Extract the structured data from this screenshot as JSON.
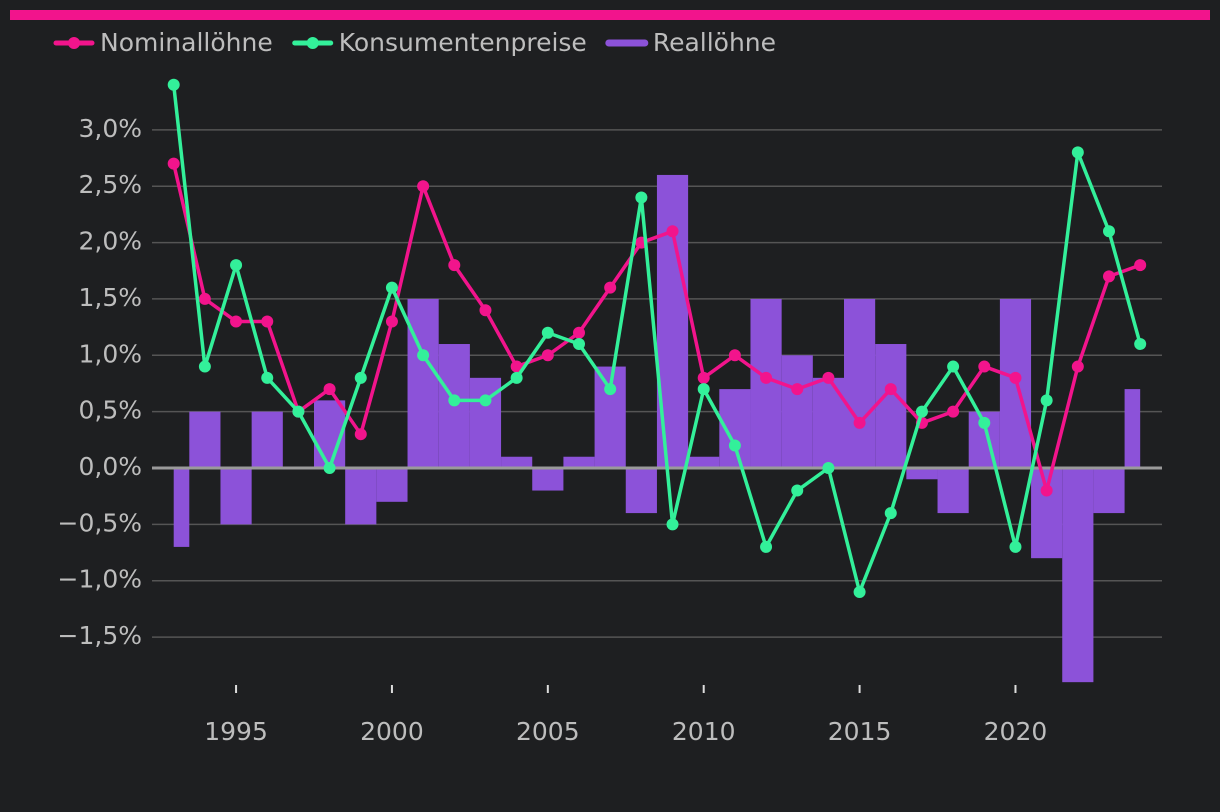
{
  "chart_data": {
    "type": "line_bar",
    "x": [
      1993,
      1994,
      1995,
      1996,
      1997,
      1998,
      1999,
      2000,
      2001,
      2002,
      2003,
      2004,
      2005,
      2006,
      2007,
      2008,
      2009,
      2010,
      2011,
      2012,
      2013,
      2014,
      2015,
      2016,
      2017,
      2018,
      2019,
      2020,
      2021,
      2022,
      2023,
      2024
    ],
    "series": [
      {
        "name": "Nominallöhne",
        "color": "#f2148c",
        "kind": "line",
        "values": [
          2.7,
          1.5,
          1.3,
          1.3,
          0.5,
          0.7,
          0.3,
          1.3,
          2.5,
          1.8,
          1.4,
          0.9,
          1.0,
          1.2,
          1.6,
          2.0,
          2.1,
          0.8,
          1.0,
          0.8,
          0.7,
          0.8,
          0.4,
          0.7,
          0.4,
          0.5,
          0.9,
          0.8,
          -0.2,
          0.9,
          1.7,
          1.8
        ]
      },
      {
        "name": "Konsumentenpreise",
        "color": "#33f09a",
        "kind": "line",
        "values": [
          3.4,
          0.9,
          1.8,
          0.8,
          0.5,
          0.0,
          0.8,
          1.6,
          1.0,
          0.6,
          0.6,
          0.8,
          1.2,
          1.1,
          0.7,
          2.4,
          -0.5,
          0.7,
          0.2,
          -0.7,
          -0.2,
          0.0,
          -1.1,
          -0.4,
          0.5,
          0.9,
          0.4,
          -0.7,
          0.6,
          2.8,
          2.1,
          1.1
        ]
      },
      {
        "name": "Reallöhne",
        "color": "#8c52d9",
        "kind": "bar",
        "values": [
          -0.7,
          0.5,
          -0.5,
          0.5,
          0.0,
          0.6,
          -0.5,
          -0.3,
          1.5,
          1.1,
          0.8,
          0.1,
          -0.2,
          0.1,
          0.9,
          -0.4,
          2.6,
          0.1,
          0.7,
          1.5,
          1.0,
          0.8,
          1.5,
          1.1,
          -0.1,
          -0.4,
          0.5,
          1.5,
          -0.8,
          -1.9,
          -0.4,
          0.7
        ]
      }
    ],
    "xlim": [
      1992.4,
      2024.7
    ],
    "xticks": [
      1995,
      2000,
      2005,
      2010,
      2015,
      2020
    ],
    "ylim": [
      -1.95,
      3.5
    ],
    "yticks": [
      {
        "value": -1.5,
        "label": "−1,5%"
      },
      {
        "value": -1.0,
        "label": "−1,0%"
      },
      {
        "value": -0.5,
        "label": "−0,5%"
      },
      {
        "value": 0,
        "label": "0,0%"
      },
      {
        "value": 0.5,
        "label": "0,5%"
      },
      {
        "value": 1.0,
        "label": "1,0%"
      },
      {
        "value": 1.5,
        "label": "1,5%"
      },
      {
        "value": 2.0,
        "label": "2,0%"
      },
      {
        "value": 2.5,
        "label": "2,5%"
      },
      {
        "value": 3.0,
        "label": "3,0%"
      }
    ],
    "grid": true,
    "legend": "top-left"
  }
}
